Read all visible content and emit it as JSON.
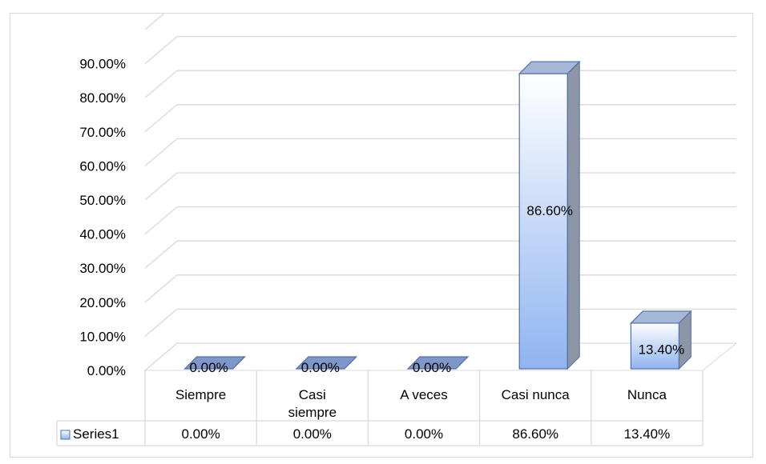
{
  "chart_data": {
    "type": "bar",
    "categories": [
      "Siempre",
      "Casi siempre",
      "A veces",
      "Casi nunca",
      "Nunca"
    ],
    "category_label_lines": [
      [
        "Siempre"
      ],
      [
        "Casi",
        "siempre"
      ],
      [
        "A veces"
      ],
      [
        "Casi nunca"
      ],
      [
        "Nunca"
      ]
    ],
    "series": [
      {
        "name": "Series1",
        "values": [
          0.0,
          0.0,
          0.0,
          86.6,
          13.4
        ],
        "labels": [
          "0.00%",
          "0.00%",
          "0.00%",
          "86.60%",
          "13.40%"
        ]
      }
    ],
    "y_ticks": [
      "0.00%",
      "10.00%",
      "20.00%",
      "30.00%",
      "40.00%",
      "50.00%",
      "60.00%",
      "70.00%",
      "80.00%",
      "90.00%"
    ],
    "ylim": [
      0,
      100
    ],
    "title": "",
    "xlabel": "",
    "ylabel": "",
    "grid": true,
    "style": "3d-column",
    "data_table": true,
    "legend": "in data table",
    "colors": {
      "bar_front_top": "#ffffff",
      "bar_front_bottom": "#8fb4f0",
      "bar_side": "#8c96a6",
      "bar_top": "#a6b8d6",
      "bar_edge": "#4f6fa8",
      "grid": "#d9d9d9",
      "floor": "#7f7f7f"
    }
  }
}
